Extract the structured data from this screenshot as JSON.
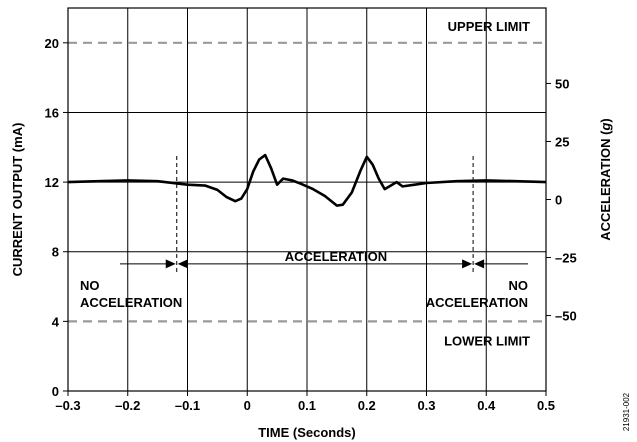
{
  "chart_data": {
    "type": "line",
    "xlabel": "TIME (Seconds)",
    "ylabel": "CURRENT OUTPUT (mA)",
    "y2label_prefix": "ACCELERATION (",
    "y2label_unit": "g",
    "y2label_suffix": ")",
    "xlim": [
      -0.3,
      0.5
    ],
    "ylim": [
      0,
      22
    ],
    "y2lim": [
      -82.5,
      82.5
    ],
    "x_ticks": [
      -0.3,
      -0.2,
      -0.1,
      0,
      0.1,
      0.2,
      0.3,
      0.4,
      0.5
    ],
    "x_tick_labels": [
      "–0.3",
      "–0.2",
      "–0.1",
      "0",
      "0.1",
      "0.2",
      "0.3",
      "0.4",
      "0.5"
    ],
    "y_ticks": [
      0,
      4,
      8,
      12,
      16,
      20
    ],
    "y_tick_labels": [
      "0",
      "4",
      "8",
      "12",
      "16",
      "20"
    ],
    "y2_ticks": [
      50,
      25,
      0,
      -25,
      -50
    ],
    "y2_tick_labels": [
      "50",
      "25",
      "0",
      "–25",
      "–50"
    ],
    "grid": true,
    "reference_lines": [
      {
        "y": 20,
        "label": "UPPER LIMIT"
      },
      {
        "y": 4,
        "label": "LOWER LIMIT"
      }
    ],
    "markers": [
      {
        "x": -0.118,
        "y_top": 13.5,
        "y_bottom": 6.8
      },
      {
        "x": 0.378,
        "y_top": 13.5,
        "y_bottom": 6.8
      }
    ],
    "annotations": {
      "acceleration": "ACCELERATION",
      "no_accel_left_line1": "NO",
      "no_accel_left_line2": "ACCELERATION",
      "no_accel_right_line1": "NO",
      "no_accel_right_line2": "ACCELERATION",
      "acceleration_arrow_y": 7.3
    },
    "series": [
      {
        "x": [
          -0.3,
          -0.25,
          -0.2,
          -0.15,
          -0.1,
          -0.07,
          -0.05,
          -0.035,
          -0.02,
          -0.01,
          0,
          0.01,
          0.02,
          0.03,
          0.04,
          0.05,
          0.06,
          0.075,
          0.09,
          0.11,
          0.13,
          0.15,
          0.16,
          0.175,
          0.19,
          0.2,
          0.21,
          0.22,
          0.23,
          0.24,
          0.25,
          0.26,
          0.28,
          0.3,
          0.35,
          0.4,
          0.45,
          0.5
        ],
        "y": [
          12.0,
          12.05,
          12.1,
          12.05,
          11.85,
          11.8,
          11.55,
          11.15,
          10.9,
          11.05,
          11.6,
          12.6,
          13.3,
          13.55,
          12.8,
          11.85,
          12.2,
          12.1,
          11.9,
          11.6,
          11.2,
          10.65,
          10.7,
          11.4,
          12.7,
          13.45,
          13.0,
          12.2,
          11.6,
          11.8,
          12.0,
          11.75,
          11.85,
          11.95,
          12.05,
          12.1,
          12.05,
          12.0
        ]
      }
    ]
  },
  "figure_code": "21931-002"
}
